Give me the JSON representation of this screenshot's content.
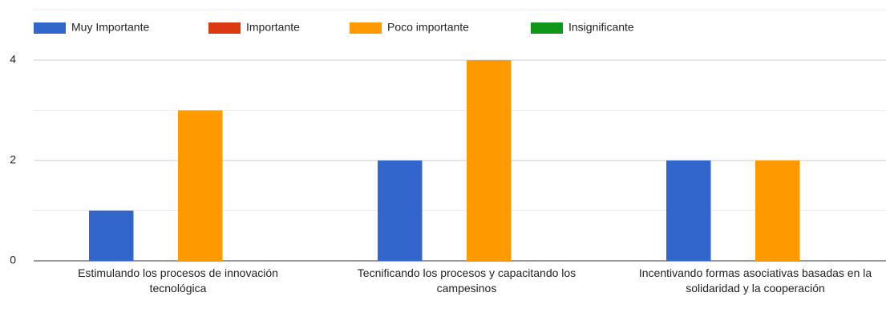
{
  "chart_data": {
    "type": "bar",
    "categories": [
      "Estimulando los procesos de innovación tecnológica",
      "Tecnificando los procesos y capacitando los campesinos",
      "Incentivando formas asociativas basadas en la solidaridad y la cooperación"
    ],
    "series": [
      {
        "name": "Muy Importante",
        "color": "#3366cc",
        "values": [
          1,
          2,
          2
        ]
      },
      {
        "name": "Importante",
        "color": "#dc3912",
        "values": [
          0,
          0,
          0
        ]
      },
      {
        "name": "Poco importante",
        "color": "#ff9900",
        "values": [
          3,
          4,
          2
        ]
      },
      {
        "name": "Insignificante",
        "color": "#109618",
        "values": [
          0,
          0,
          0
        ]
      }
    ],
    "ylim": [
      0,
      5
    ],
    "yticks": [
      0,
      2,
      4
    ],
    "minor_yticks": [
      1,
      3,
      5
    ],
    "grid": true,
    "legend": "top"
  }
}
